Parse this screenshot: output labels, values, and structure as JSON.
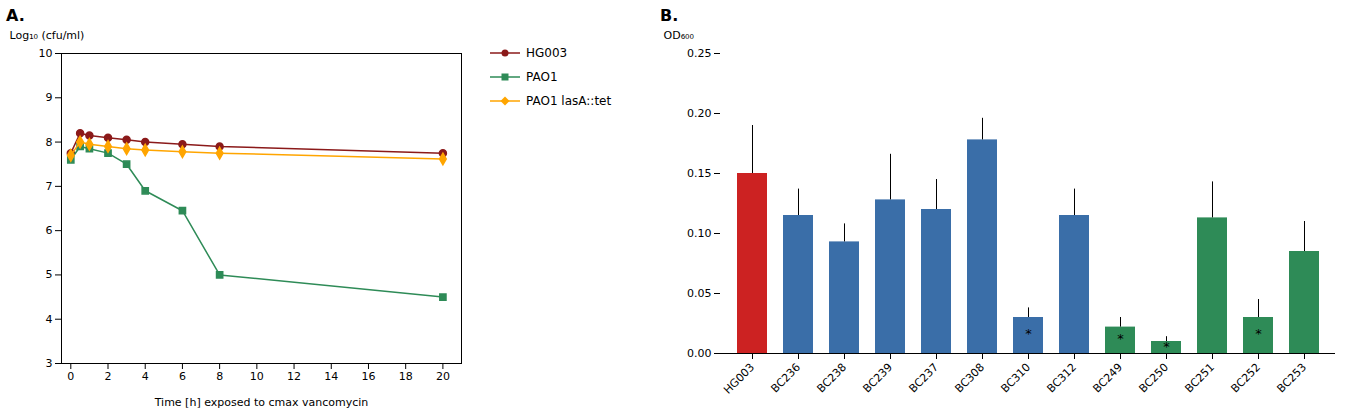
{
  "chart_data": [
    {
      "type": "line",
      "title": "A.",
      "xlabel": "Time [h] exposed to cmax vancomycin",
      "ylabel": "Log₁₀ (cfu/ml)",
      "xlim": [
        -0.5,
        21
      ],
      "xticks": [
        0,
        2,
        4,
        6,
        8,
        10,
        12,
        14,
        16,
        18,
        20
      ],
      "ylim": [
        3,
        10
      ],
      "yticks": [
        3,
        4,
        5,
        6,
        7,
        8,
        9,
        10
      ],
      "grid": false,
      "x": [
        0,
        0.5,
        1,
        2,
        3,
        4,
        6,
        8,
        20
      ],
      "series": [
        {
          "name": "HG003",
          "color": "#8B1A1A",
          "marker": "circle",
          "values": [
            7.75,
            8.2,
            8.15,
            8.1,
            8.05,
            8.0,
            7.95,
            7.9,
            7.75
          ],
          "yerr": [
            0.0,
            0.05,
            0.05,
            0.05,
            0.05,
            0.05,
            0.05,
            0.05,
            0.06
          ]
        },
        {
          "name": "PAO1",
          "color": "#2E8B57",
          "marker": "square",
          "values": [
            7.6,
            7.9,
            7.85,
            7.75,
            7.5,
            6.9,
            6.45,
            5.0,
            4.5
          ],
          "yerr": [
            0.0,
            0.05,
            0.05,
            0.05,
            0.05,
            0.05,
            0.05,
            0.05,
            0.05
          ]
        },
        {
          "name": "PAO1 lasA::tet",
          "color": "#FFA500",
          "marker": "diamond",
          "values": [
            7.7,
            8.0,
            7.95,
            7.9,
            7.85,
            7.82,
            7.78,
            7.75,
            7.62
          ],
          "yerr": [
            0.0,
            0.05,
            0.05,
            0.05,
            0.05,
            0.05,
            0.05,
            0.05,
            0.07
          ]
        }
      ]
    },
    {
      "type": "bar",
      "title": "B.",
      "ylabel": "OD₆₀₀",
      "ylim": [
        0.0,
        0.25
      ],
      "yticks": [
        {
          "value": 0.0,
          "label": "0.00"
        },
        {
          "value": 0.05,
          "label": "0.05"
        },
        {
          "value": 0.1,
          "label": "0.10"
        },
        {
          "value": 0.15,
          "label": "0.15"
        },
        {
          "value": 0.2,
          "label": "0.20"
        },
        {
          "value": 0.25,
          "label": "0.25"
        }
      ],
      "grid": false,
      "categories": [
        "HG003",
        "BC236",
        "BC238",
        "BC239",
        "BC237",
        "BC308",
        "BC310",
        "BC312",
        "BC249",
        "BC250",
        "BC251",
        "BC252",
        "BC253"
      ],
      "values": [
        0.15,
        0.115,
        0.093,
        0.128,
        0.12,
        0.178,
        0.03,
        0.115,
        0.022,
        0.01,
        0.113,
        0.03,
        0.085
      ],
      "yerr": [
        0.04,
        0.022,
        0.015,
        0.038,
        0.025,
        0.018,
        0.008,
        0.022,
        0.008,
        0.004,
        0.03,
        0.015,
        0.025
      ],
      "colors": [
        "#CC2222",
        "#3A6EA8",
        "#3A6EA8",
        "#3A6EA8",
        "#3A6EA8",
        "#3A6EA8",
        "#3A6EA8",
        "#3A6EA8",
        "#2E8B57",
        "#2E8B57",
        "#2E8B57",
        "#2E8B57",
        "#2E8B57"
      ],
      "annotations": [
        null,
        null,
        null,
        null,
        null,
        null,
        "*",
        null,
        "*",
        "*",
        null,
        "*",
        null
      ]
    }
  ]
}
